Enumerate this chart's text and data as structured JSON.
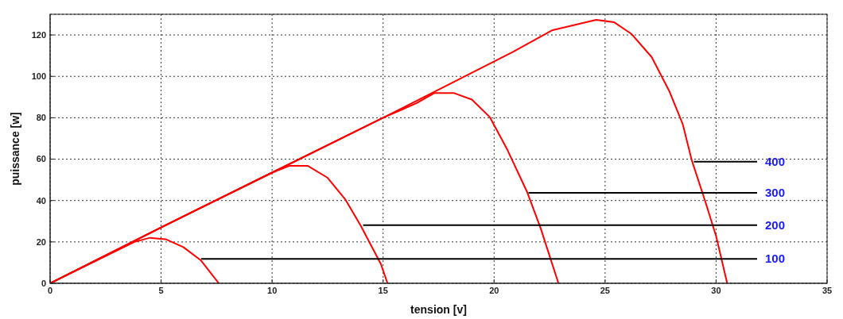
{
  "chart_data": {
    "type": "line",
    "xlabel": "tension [v]",
    "ylabel": "puissance [w]",
    "xlim": [
      0,
      35
    ],
    "xticks": [
      0,
      5,
      10,
      15,
      20,
      25,
      30,
      35
    ],
    "ylim": [
      0,
      130
    ],
    "yticks": [
      0,
      20,
      40,
      60,
      80,
      100,
      120
    ],
    "grid": true,
    "legend": false,
    "marker": "none",
    "line_style": "solid",
    "series": [
      {
        "color": "#ff0000",
        "x": [
          0,
          2,
          3.8,
          4.5,
          5.2,
          6,
          6.8,
          7.6
        ],
        "values": [
          0,
          10.5,
          20,
          22,
          21.3,
          17.5,
          11,
          0
        ]
      },
      {
        "color": "#ff0000",
        "x": [
          0,
          5,
          10,
          10.8,
          11.6,
          12.5,
          13.3,
          14,
          14.9,
          15.2
        ],
        "values": [
          0,
          27,
          53.5,
          56.8,
          56.8,
          51,
          40.5,
          27.7,
          9.3,
          0
        ]
      },
      {
        "color": "#ff0000",
        "x": [
          0,
          5,
          10,
          15,
          16.5,
          17.3,
          18.2,
          19,
          19.8,
          20.6,
          21.5,
          22.1,
          22.9
        ],
        "values": [
          0,
          27,
          53.5,
          80,
          87,
          91.9,
          91.9,
          88.8,
          80.4,
          64.5,
          43.8,
          26.5,
          0
        ]
      },
      {
        "color": "#ff0000",
        "x": [
          0,
          5,
          10,
          15,
          20.85,
          22.6,
          24.6,
          25.4,
          26.2,
          27.1,
          27.9,
          28.5,
          28.9,
          29.5,
          30,
          30.5
        ],
        "values": [
          0,
          27,
          53.5,
          80,
          111.8,
          122.2,
          127.3,
          126.2,
          120.4,
          109.3,
          92.7,
          76.8,
          59.6,
          40,
          22.8,
          0
        ]
      }
    ],
    "annotations": [
      {
        "text": "100",
        "x": 6.8,
        "y": 11.8
      },
      {
        "text": "200",
        "x": 14.1,
        "y": 28.1
      },
      {
        "text": "300",
        "x": 21.55,
        "y": 43.7
      },
      {
        "text": "400",
        "x": 29,
        "y": 58.8
      }
    ]
  }
}
